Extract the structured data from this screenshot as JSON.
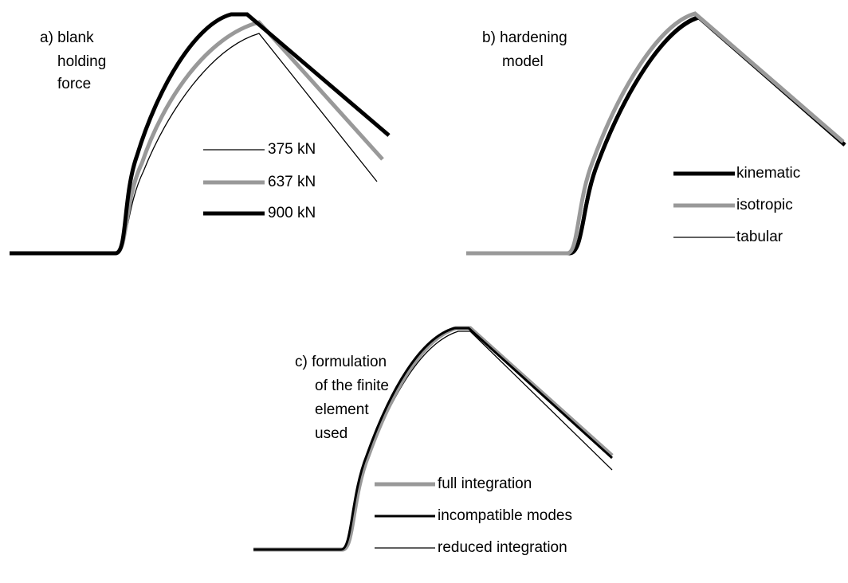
{
  "panels": [
    {
      "label": [
        "a) blank",
        "holding",
        "force"
      ],
      "legend": [
        "375 kN",
        "637 kN",
        "900 kN"
      ]
    },
    {
      "label": [
        "b) hardening",
        "model"
      ],
      "legend": [
        "kinematic",
        "isotropic",
        "tabular"
      ]
    },
    {
      "label": [
        "c) formulation",
        "of the finite",
        "element",
        "used"
      ],
      "legend": [
        "full integration",
        "incompatible modes",
        "reduced integration"
      ]
    }
  ]
}
